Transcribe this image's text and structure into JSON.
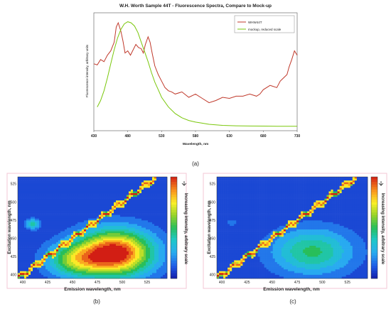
{
  "chart_data": [
    {
      "type": "line",
      "title": "W.H. Worth Sample 44T - Fluorescence Spectra, Compare to Mock-up",
      "xlabel": "Wavelength, nm",
      "ylabel": "Fluorescence intensity, arbitrary units",
      "xlim": [
        430,
        730
      ],
      "x_ticks": [
        "430",
        "480",
        "530",
        "580",
        "630",
        "680",
        "730"
      ],
      "legend_position": "top-right",
      "panel_label": "(a)",
      "series": [
        {
          "name": "WHW44T",
          "color": "#c0392b",
          "x": [
            430,
            435,
            440,
            445,
            450,
            455,
            460,
            463,
            466,
            470,
            473,
            476,
            480,
            484,
            488,
            492,
            496,
            500,
            503,
            506,
            510,
            513,
            516,
            520,
            525,
            530,
            535,
            540,
            545,
            550,
            560,
            570,
            580,
            590,
            600,
            610,
            620,
            630,
            640,
            650,
            660,
            670,
            675,
            680,
            690,
            700,
            705,
            710,
            715,
            718,
            722,
            726,
            730
          ],
          "y": [
            0.58,
            0.57,
            0.62,
            0.6,
            0.66,
            0.7,
            0.78,
            0.92,
            0.96,
            0.88,
            0.79,
            0.68,
            0.7,
            0.66,
            0.71,
            0.76,
            0.73,
            0.72,
            0.68,
            0.76,
            0.83,
            0.78,
            0.68,
            0.56,
            0.48,
            0.42,
            0.36,
            0.33,
            0.32,
            0.3,
            0.32,
            0.27,
            0.3,
            0.26,
            0.22,
            0.24,
            0.27,
            0.26,
            0.28,
            0.28,
            0.3,
            0.28,
            0.3,
            0.34,
            0.38,
            0.36,
            0.42,
            0.45,
            0.48,
            0.55,
            0.62,
            0.7,
            0.66
          ]
        },
        {
          "name": "mockup, reduced scale",
          "color": "#7ac70c",
          "x": [
            435,
            440,
            445,
            450,
            455,
            460,
            465,
            470,
            475,
            480,
            485,
            490,
            495,
            500,
            505,
            510,
            515,
            520,
            525,
            530,
            540,
            550,
            560,
            570,
            580,
            590,
            600,
            620,
            640,
            660,
            680,
            700,
            730
          ],
          "y": [
            0.18,
            0.24,
            0.33,
            0.45,
            0.58,
            0.71,
            0.82,
            0.9,
            0.95,
            0.97,
            0.96,
            0.93,
            0.87,
            0.78,
            0.69,
            0.6,
            0.5,
            0.41,
            0.34,
            0.27,
            0.18,
            0.12,
            0.08,
            0.055,
            0.04,
            0.03,
            0.02,
            0.01,
            0.006,
            0.004,
            0.003,
            0.002,
            0.002
          ]
        }
      ]
    },
    {
      "type": "heatmap",
      "panel_label": "(b)",
      "xlabel": "Emission wavelength, nm",
      "ylabel": "Excitation wavelength, nm",
      "colorbar_label": "Increasing intensity, arbitrary scale",
      "xlim": [
        395,
        545
      ],
      "ylim": [
        395,
        535
      ],
      "x_ticks": [
        400,
        425,
        450,
        475,
        500,
        525
      ],
      "y_ticks": [
        400,
        425,
        450,
        475,
        500,
        525
      ],
      "peaks": [
        {
          "em": 493,
          "ex": 430,
          "level": 1.0,
          "sx": 26,
          "sy": 22
        },
        {
          "em": 452,
          "ex": 420,
          "level": 0.45,
          "sx": 20,
          "sy": 16
        },
        {
          "em": 410,
          "ex": 470,
          "level": 0.35,
          "sx": 5,
          "sy": 5
        }
      ],
      "diagonal_band": "scatter ridge along excitation = emission"
    },
    {
      "type": "heatmap",
      "panel_label": "(c)",
      "xlabel": "Emission wavelength, nm",
      "ylabel": "Excitation wavelength, nm",
      "colorbar_label": "Increasing intensity, arbitrary scale",
      "xlim": [
        395,
        545
      ],
      "ylim": [
        395,
        535
      ],
      "x_ticks": [
        400,
        425,
        450,
        475,
        500,
        525
      ],
      "y_ticks": [
        400,
        425,
        450,
        475,
        500,
        525
      ],
      "peaks": [
        {
          "em": 490,
          "ex": 432,
          "level": 0.42,
          "sx": 28,
          "sy": 22
        },
        {
          "em": 410,
          "ex": 472,
          "level": 0.1,
          "sx": 5,
          "sy": 4
        }
      ],
      "diagonal_band": "scatter ridge along excitation = emission"
    }
  ]
}
